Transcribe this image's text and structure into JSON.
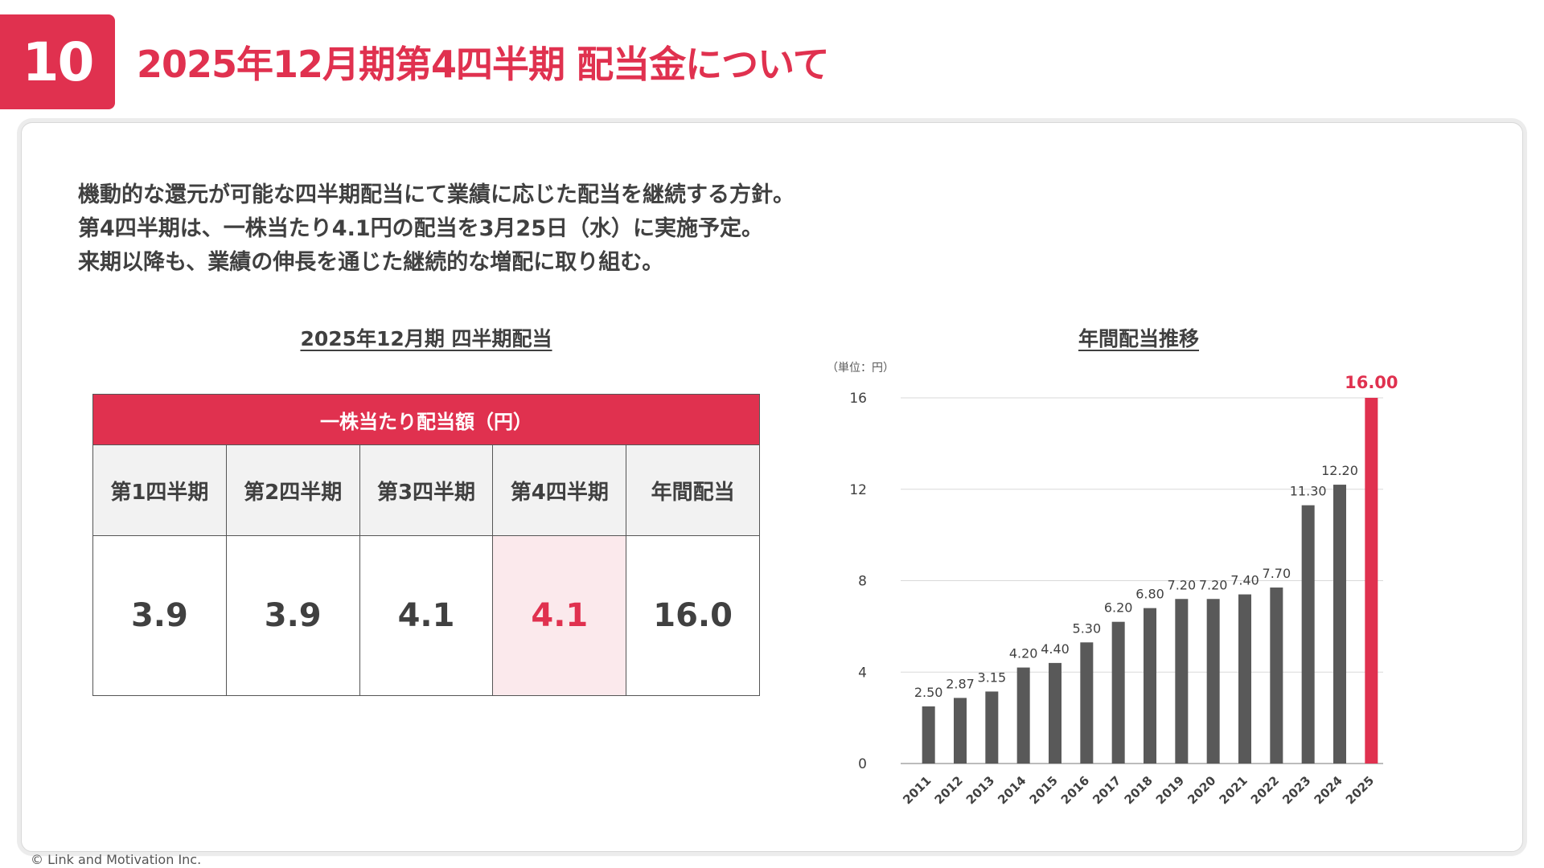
{
  "header": {
    "page_number": "10",
    "title": "2025年12月期第4四半期 配当金について"
  },
  "intro": {
    "lines": [
      "機動的な還元が可能な四半期配当にて業績に応じた配当を継続する方針。",
      "第4四半期は、一株当たり4.1円の配当を3月25日（水）に実施予定。",
      "来期以降も、業績の伸長を通じた継続的な増配に取り組む。"
    ]
  },
  "table": {
    "title": "2025年12月期 四半期配当",
    "banner": "一株当たり配当額（円）",
    "headers": [
      "第1四半期",
      "第2四半期",
      "第3四半期",
      "第4四半期",
      "年間配当"
    ],
    "values": [
      "3.9",
      "3.9",
      "4.1",
      "4.1",
      "16.0"
    ],
    "highlight_index": 3
  },
  "chart_data": {
    "type": "bar",
    "title": "年間配当推移",
    "unit_label": "（単位：円）",
    "categories": [
      "2011",
      "2012",
      "2013",
      "2014",
      "2015",
      "2016",
      "2017",
      "2018",
      "2019",
      "2020",
      "2021",
      "2022",
      "2023",
      "2024",
      "2025"
    ],
    "values": [
      2.5,
      2.87,
      3.15,
      4.2,
      4.4,
      5.3,
      6.2,
      6.8,
      7.2,
      7.2,
      7.4,
      7.7,
      11.3,
      12.2,
      16.0
    ],
    "value_labels": [
      "2.50",
      "2.87",
      "3.15",
      "4.20",
      "4.40",
      "5.30",
      "6.20",
      "6.80",
      "7.20",
      "7.20",
      "7.40",
      "7.70",
      "11.30",
      "12.20",
      "16.00"
    ],
    "yticks": [
      0,
      4,
      8,
      12,
      16
    ],
    "ylim": [
      0,
      16
    ],
    "grid": true,
    "highlight_index": 14,
    "colors": {
      "bar": "#595959",
      "highlight": "#e0314f",
      "grid": "#d9d9d9"
    }
  },
  "footer": {
    "copyright": "© Link and Motivation Inc."
  },
  "colors": {
    "accent": "#e0314f",
    "text": "#404040",
    "header_bg": "#f2f2f2",
    "highlight_bg": "#fbe9ec"
  }
}
